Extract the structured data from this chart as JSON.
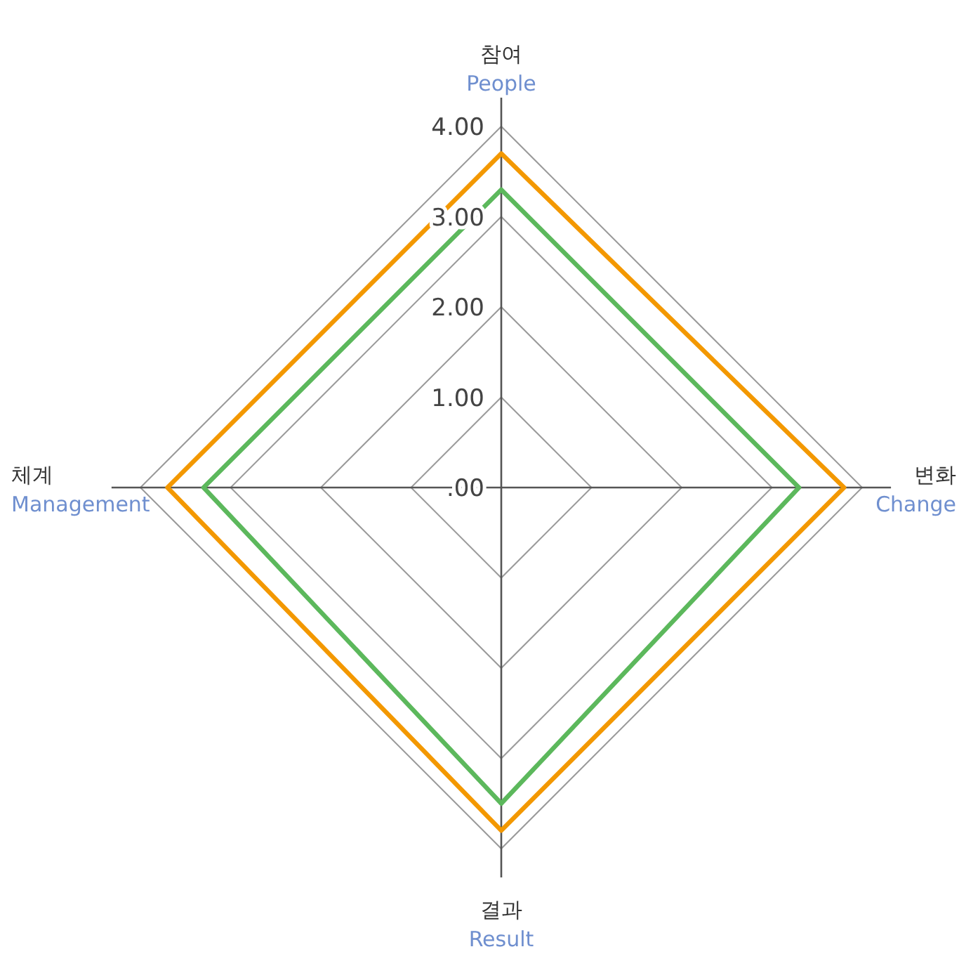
{
  "chart_data": {
    "type": "radar",
    "categories": [
      "참여\nPeople",
      "변화\nChange",
      "결과\nResult",
      "체계\nManagement"
    ],
    "series": [
      {
        "color": "#f39800",
        "values": [
          3.7,
          3.8,
          3.8,
          3.7
        ]
      },
      {
        "color": "#5cb85c",
        "values": [
          3.3,
          3.3,
          3.5,
          3.3
        ]
      }
    ],
    "ylim": [
      0,
      4
    ],
    "yticks": [
      {
        "value": 0,
        "label": ".00"
      },
      {
        "value": 1,
        "label": "1.00"
      },
      {
        "value": 2,
        "label": "2.00"
      },
      {
        "value": 3,
        "label": "3.00"
      },
      {
        "value": 4,
        "label": "4.00"
      }
    ],
    "grid": true
  }
}
